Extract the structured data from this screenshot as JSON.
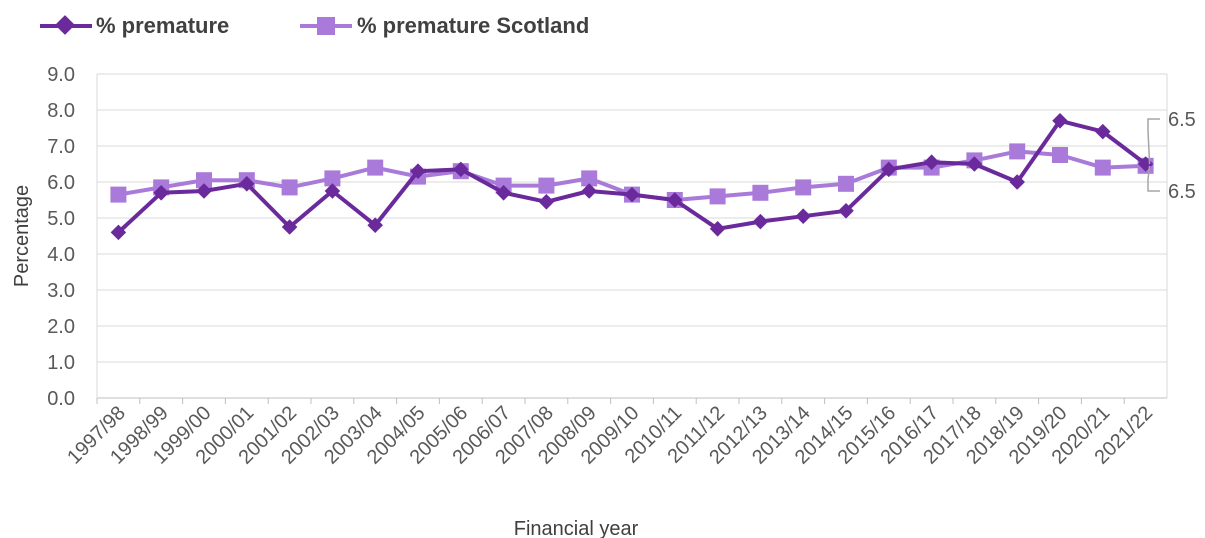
{
  "chart_data": {
    "type": "line",
    "title": "",
    "xlabel": "Financial year",
    "ylabel": "Percentage",
    "ylim": [
      0,
      9
    ],
    "yticks": [
      "0.0",
      "1.0",
      "2.0",
      "3.0",
      "4.0",
      "5.0",
      "6.0",
      "7.0",
      "8.0",
      "9.0"
    ],
    "grid": true,
    "legend_position": "top-left",
    "categories": [
      "1997/98",
      "1998/99",
      "1999/00",
      "2000/01",
      "2001/02",
      "2002/03",
      "2003/04",
      "2004/05",
      "2005/06",
      "2006/07",
      "2007/08",
      "2008/09",
      "2009/10",
      "2010/11",
      "2011/12",
      "2012/13",
      "2013/14",
      "2014/15",
      "2015/16",
      "2016/17",
      "2017/18",
      "2018/19",
      "2019/20",
      "2020/21",
      "2021/22"
    ],
    "series": [
      {
        "name": "% premature",
        "color": "#6a2a9c",
        "marker": "diamond",
        "values": [
          4.6,
          5.7,
          5.75,
          5.95,
          4.75,
          5.75,
          4.8,
          6.3,
          6.35,
          5.7,
          5.45,
          5.75,
          5.65,
          5.5,
          4.7,
          4.9,
          5.05,
          5.2,
          6.35,
          6.55,
          6.5,
          6.0,
          7.7,
          7.4,
          6.5
        ]
      },
      {
        "name": "% premature Scotland",
        "color": "#a97ad9",
        "marker": "square",
        "values": [
          5.65,
          5.85,
          6.05,
          6.05,
          5.85,
          6.1,
          6.4,
          6.15,
          6.3,
          5.9,
          5.9,
          6.1,
          5.65,
          5.5,
          5.6,
          5.7,
          5.85,
          5.95,
          6.4,
          6.4,
          6.6,
          6.85,
          6.75,
          6.4,
          6.45
        ]
      }
    ],
    "annotations": [
      {
        "text": "6.5",
        "series": "% premature",
        "category": "2021/22"
      },
      {
        "text": "6.5",
        "series": "% premature Scotland",
        "category": "2021/22"
      }
    ]
  }
}
